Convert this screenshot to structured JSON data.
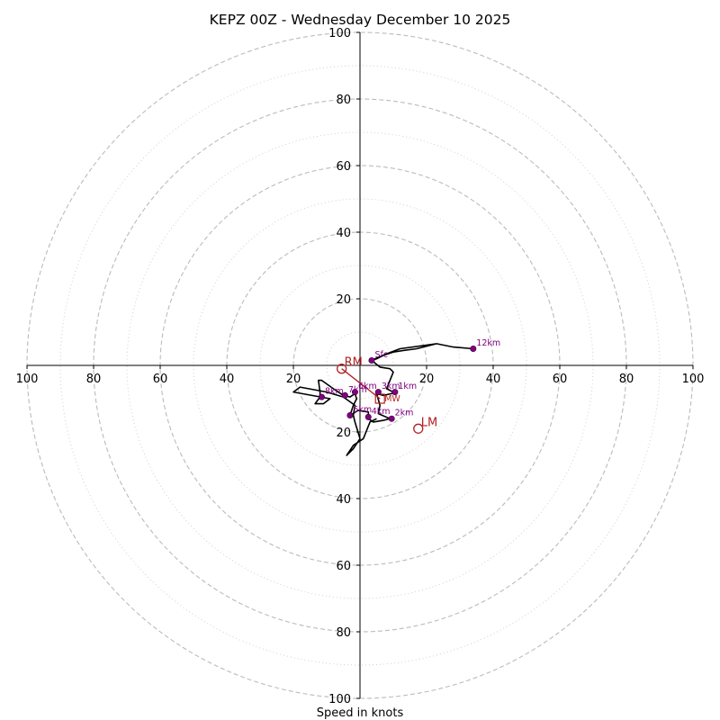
{
  "chart_data": {
    "type": "hodograph",
    "title": "KEPZ 00Z - Wednesday December 10 2025",
    "xlabel": "Speed in knots",
    "xlim": [
      -100,
      100
    ],
    "ylim": [
      -100,
      100
    ],
    "major_rings": [
      20,
      40,
      60,
      80,
      100
    ],
    "minor_rings": [
      10,
      30,
      50,
      70,
      90
    ],
    "x_ticks": [
      "100",
      "80",
      "60",
      "40",
      "20",
      "20",
      "40",
      "60",
      "80",
      "100"
    ],
    "y_ticks": [
      "100",
      "80",
      "60",
      "40",
      "20",
      "20",
      "40",
      "60",
      "80",
      "100"
    ],
    "colors": {
      "trace": "#000000",
      "points": "#800080",
      "motion": "#b22222",
      "grid": "#bbbbbb",
      "axis": "#000000"
    },
    "trace": [
      [
        3.5,
        1.5
      ],
      [
        5,
        2
      ],
      [
        7,
        3
      ],
      [
        10,
        4
      ],
      [
        13,
        4.5
      ],
      [
        17,
        5
      ],
      [
        23,
        6.5
      ],
      [
        28,
        5.5
      ],
      [
        34,
        5
      ],
      [
        34,
        5
      ],
      [
        28,
        5.5
      ],
      [
        23,
        6.5
      ],
      [
        12,
        5
      ],
      [
        8,
        3.5
      ],
      [
        3.5,
        1.5
      ],
      [
        6,
        -0.5
      ],
      [
        9,
        -1
      ],
      [
        10,
        -2
      ],
      [
        8,
        -7
      ],
      [
        10,
        -8
      ],
      [
        9.5,
        -8.5
      ],
      [
        7,
        -9
      ],
      [
        5,
        -8.5
      ],
      [
        6,
        -12
      ],
      [
        5.5,
        -14.5
      ],
      [
        9,
        -16
      ],
      [
        7,
        -16.5
      ],
      [
        4,
        -17
      ],
      [
        2.5,
        -16
      ],
      [
        2.5,
        -14
      ],
      [
        -0.5,
        -13.5
      ],
      [
        -3,
        -15
      ],
      [
        -2,
        -12
      ],
      [
        -1,
        -10
      ],
      [
        -1.5,
        -8.5
      ],
      [
        -3,
        -9.5
      ],
      [
        -5,
        -9
      ],
      [
        -8,
        -7
      ],
      [
        -11.5,
        -4.5
      ],
      [
        -12.5,
        -4.5
      ],
      [
        -12,
        -8
      ],
      [
        -12,
        -9.5
      ],
      [
        -13.5,
        -11.5
      ],
      [
        -11,
        -11.5
      ],
      [
        -9,
        -10
      ],
      [
        -20,
        -8
      ],
      [
        -18,
        -6.5
      ],
      [
        -10,
        -8
      ],
      [
        -5,
        -9.5
      ],
      [
        -1.5,
        -12
      ],
      [
        -2,
        -15
      ],
      [
        -1.5,
        -17
      ],
      [
        0,
        -22
      ],
      [
        -2,
        -25
      ],
      [
        -4,
        -27
      ],
      [
        -2,
        -24
      ],
      [
        1,
        -22
      ],
      [
        3,
        -17
      ],
      [
        5,
        -16
      ]
    ],
    "height_markers": [
      {
        "label": "Sfc",
        "x": 3.5,
        "y": 1.5
      },
      {
        "label": "1km",
        "x": 10.5,
        "y": -8
      },
      {
        "label": "2km",
        "x": 9.5,
        "y": -16
      },
      {
        "label": "3km",
        "x": 5.5,
        "y": -8
      },
      {
        "label": "4km",
        "x": 2.5,
        "y": -15.5
      },
      {
        "label": "5km",
        "x": -3,
        "y": -15
      },
      {
        "label": "6km",
        "x": -1.5,
        "y": -8
      },
      {
        "label": "7km",
        "x": -4.5,
        "y": -9
      },
      {
        "label": "8km",
        "x": -11.5,
        "y": -9.5
      },
      {
        "label": "12km",
        "x": 34,
        "y": 5
      }
    ],
    "mean_wind": {
      "label": "MW",
      "x": 6,
      "y": -10
    },
    "storm_motion": [
      {
        "label": "RM",
        "x": -5.5,
        "y": -1
      },
      {
        "label": "LM",
        "x": 17.5,
        "y": -19
      }
    ]
  }
}
